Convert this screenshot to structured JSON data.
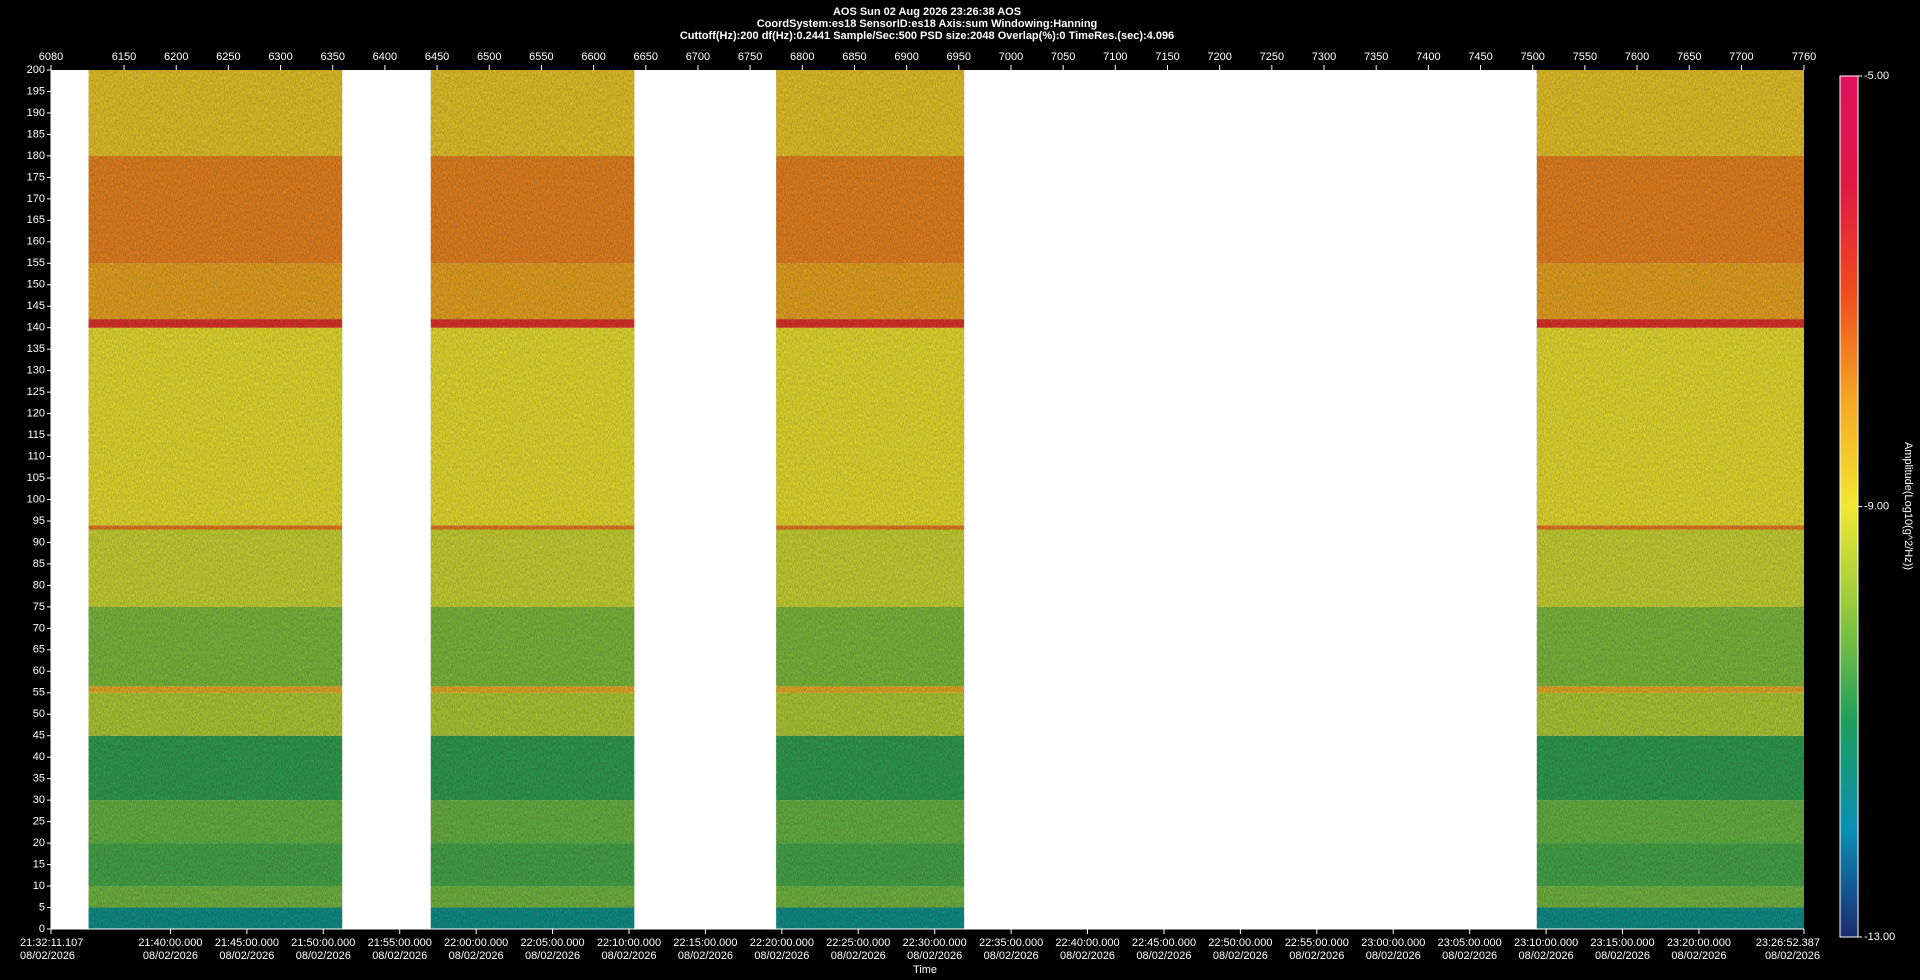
{
  "chart_data": {
    "type": "spectrogram",
    "title": "AOS  Sun 02 Aug 2026 23:26:38  AOS",
    "subtitle": "CoordSystem:es18   SensorID:es18    Axis:sum    Windowing:Hanning",
    "settings_line": "Cuttoff(Hz):200      df(Hz):0.2441      Sample/Sec:500      PSD size:2048      Overlap(%):0      TimeRes.(sec):4.096",
    "xlabel": "Time",
    "zlabel": "Amplitude(Log10(g^2/Hz))",
    "xlim": [
      6080,
      7760
    ],
    "xticks": [
      6080,
      6150,
      6200,
      6250,
      6300,
      6350,
      6400,
      6450,
      6500,
      6550,
      6600,
      6650,
      6700,
      6750,
      6800,
      6850,
      6900,
      6950,
      7000,
      7050,
      7100,
      7150,
      7200,
      7250,
      7300,
      7350,
      7400,
      7450,
      7500,
      7550,
      7600,
      7650,
      7700,
      7760
    ],
    "time_ticks": [
      {
        "value": 6080,
        "label": "21:32:11.107",
        "date": "08/02/2026"
      },
      {
        "value": 6194.47,
        "label": "21:40:00.000",
        "date": "08/02/2026"
      },
      {
        "value": 6267.72,
        "label": "21:45:00.000",
        "date": "08/02/2026"
      },
      {
        "value": 6340.96,
        "label": "21:50:00.000",
        "date": "08/02/2026"
      },
      {
        "value": 6414.2,
        "label": "21:55:00.000",
        "date": "08/02/2026"
      },
      {
        "value": 6487.44,
        "label": "22:00:00.000",
        "date": "08/02/2026"
      },
      {
        "value": 6560.68,
        "label": "22:05:00.000",
        "date": "08/02/2026"
      },
      {
        "value": 6633.93,
        "label": "22:10:00.000",
        "date": "08/02/2026"
      },
      {
        "value": 6707.17,
        "label": "22:15:00.000",
        "date": "08/02/2026"
      },
      {
        "value": 6780.41,
        "label": "22:20:00.000",
        "date": "08/02/2026"
      },
      {
        "value": 6853.65,
        "label": "22:25:00.000",
        "date": "08/02/2026"
      },
      {
        "value": 6926.89,
        "label": "22:30:00.000",
        "date": "08/02/2026"
      },
      {
        "value": 7000.14,
        "label": "22:35:00.000",
        "date": "08/02/2026"
      },
      {
        "value": 7073.38,
        "label": "22:40:00.000",
        "date": "08/02/2026"
      },
      {
        "value": 7146.62,
        "label": "22:45:00.000",
        "date": "08/02/2026"
      },
      {
        "value": 7219.86,
        "label": "22:50:00.000",
        "date": "08/02/2026"
      },
      {
        "value": 7293.1,
        "label": "22:55:00.000",
        "date": "08/02/2026"
      },
      {
        "value": 7366.35,
        "label": "23:00:00.000",
        "date": "08/02/2026"
      },
      {
        "value": 7439.59,
        "label": "23:05:00.000",
        "date": "08/02/2026"
      },
      {
        "value": 7512.83,
        "label": "23:10:00.000",
        "date": "08/02/2026"
      },
      {
        "value": 7586.07,
        "label": "23:15:00.000",
        "date": "08/02/2026"
      },
      {
        "value": 7659.31,
        "label": "23:20:00.000",
        "date": "08/02/2026"
      },
      {
        "value": 7760,
        "label": "23:26:52.387",
        "date": "08/02/2026"
      }
    ],
    "ylim": [
      0,
      200
    ],
    "yticks": [
      0,
      5,
      10,
      15,
      20,
      25,
      30,
      35,
      40,
      45,
      50,
      55,
      60,
      65,
      70,
      75,
      80,
      85,
      90,
      95,
      100,
      105,
      110,
      115,
      120,
      125,
      130,
      135,
      140,
      145,
      150,
      155,
      160,
      165,
      170,
      175,
      180,
      185,
      190,
      195,
      200
    ],
    "zlim": [
      -13,
      -5
    ],
    "zticks": [
      {
        "value": -5,
        "label": "-5.00"
      },
      {
        "value": -9,
        "label": "-9.00"
      },
      {
        "value": -13,
        "label": "-13.00"
      }
    ],
    "colormap": [
      "#1c2a70",
      "#0a90b4",
      "#1e9e5a",
      "#8ec83e",
      "#f2e832",
      "#f5a623",
      "#f04a1e",
      "#e01842",
      "#e0105c"
    ],
    "segments": [
      [
        6116,
        6359
      ],
      [
        6444,
        6639
      ],
      [
        6775,
        6955
      ],
      [
        7504,
        7760
      ]
    ],
    "bands": [
      {
        "from": 0,
        "to": 5,
        "value": -11.6
      },
      {
        "from": 5,
        "to": 10,
        "value": -10.2
      },
      {
        "from": 10,
        "to": 20,
        "value": -10.6
      },
      {
        "from": 20,
        "to": 30,
        "value": -10.3
      },
      {
        "from": 30,
        "to": 45,
        "value": -10.8
      },
      {
        "from": 45,
        "to": 55,
        "value": -9.6
      },
      {
        "from": 55,
        "to": 56.5,
        "value": -8.2
      },
      {
        "from": 56.5,
        "to": 75,
        "value": -10.1
      },
      {
        "from": 75,
        "to": 93,
        "value": -9.3
      },
      {
        "from": 93,
        "to": 94,
        "value": -7.6
      },
      {
        "from": 94,
        "to": 140,
        "value": -9
      },
      {
        "from": 140,
        "to": 142,
        "value": -6.6
      },
      {
        "from": 142,
        "to": 155,
        "value": -8.1
      },
      {
        "from": 155,
        "to": 180,
        "value": -7.7
      },
      {
        "from": 180,
        "to": 200,
        "value": -8.6
      }
    ]
  }
}
